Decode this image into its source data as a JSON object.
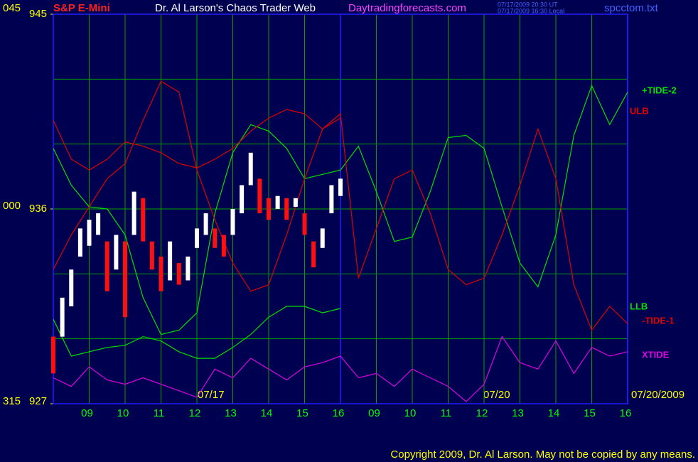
{
  "chart_data": {
    "type": "line",
    "symbol": "S&P E-Mini",
    "title": "Dr. Al Larson's Chaos Trader Web",
    "site": "Daytradingforecasts.com",
    "timestamps": [
      "07/17/2009 20:30 UT",
      "07/17/2009 16:30 Local"
    ],
    "file": "spcctom.txt",
    "copyright": "Copyright 2009, Dr. Al Larson. May not be copied by any means.",
    "left_labels": [
      "045",
      "000",
      "315"
    ],
    "dates": [
      "07/17",
      "07/20",
      "07/20/2009"
    ],
    "ylim": [
      927,
      945
    ],
    "yticks": [
      945,
      936,
      927
    ],
    "ygrid": [
      930,
      933,
      936,
      939,
      942
    ],
    "xlim": [
      0,
      16
    ],
    "session_break": 8,
    "xticks": [
      {
        "value": 1,
        "label": "09"
      },
      {
        "value": 2,
        "label": "10"
      },
      {
        "value": 3,
        "label": "11"
      },
      {
        "value": 4,
        "label": "12"
      },
      {
        "value": 5,
        "label": "13"
      },
      {
        "value": 6,
        "label": "14"
      },
      {
        "value": 7,
        "label": "15"
      },
      {
        "value": 8,
        "label": "16"
      },
      {
        "value": 9,
        "label": "09"
      },
      {
        "value": 10,
        "label": "10"
      },
      {
        "value": 11,
        "label": "11"
      },
      {
        "value": 12,
        "label": "12"
      },
      {
        "value": 13,
        "label": "13"
      },
      {
        "value": 14,
        "label": "14"
      },
      {
        "value": 15,
        "label": "15"
      },
      {
        "value": 16,
        "label": "16"
      }
    ],
    "x": [
      0,
      0.5,
      1,
      1.5,
      2,
      2.5,
      3,
      3.5,
      4,
      4.5,
      5,
      5.5,
      6,
      6.5,
      7,
      7.5,
      8,
      8.5,
      9,
      9.5,
      10,
      10.5,
      11,
      11.5,
      12,
      12.5,
      13,
      13.5,
      14,
      14.5,
      15,
      15.5,
      16
    ],
    "series": [
      {
        "name": "+TIDE-2",
        "color": "#00e000",
        "values": [
          938.8,
          937.1,
          936.1,
          936.0,
          934.8,
          931.9,
          930.2,
          930.4,
          931.2,
          935.8,
          938.6,
          939.9,
          939.6,
          938.8,
          937.4,
          937.6,
          937.8,
          938.9,
          936.8,
          934.5,
          934.7,
          936.8,
          939.3,
          939.4,
          938.8,
          936.1,
          933.5,
          932.4,
          934.8,
          939.4,
          941.7,
          939.9,
          941.4
        ]
      },
      {
        "name": "ULB",
        "color": "#e00000",
        "values": [
          940.1,
          938.3,
          937.8,
          938.3,
          939.1,
          938.9,
          938.6,
          938.1,
          937.9,
          938.3,
          938.8,
          939.6,
          940.2,
          940.6,
          940.4,
          939.7,
          940.2,
          null,
          null,
          null,
          null,
          null,
          null,
          null,
          null,
          null,
          null,
          null,
          null,
          null,
          null,
          null,
          null
        ]
      },
      {
        "name": "LLB",
        "color": "#00e000",
        "values": [
          930.9,
          929.2,
          929.4,
          929.6,
          929.7,
          930.1,
          929.9,
          929.4,
          929.1,
          929.1,
          929.6,
          930.2,
          931.0,
          931.5,
          931.5,
          931.2,
          931.4,
          null,
          null,
          null,
          null,
          null,
          null,
          null,
          null,
          null,
          null,
          null,
          null,
          null,
          null,
          null,
          null
        ]
      },
      {
        "name": "-TIDE-1",
        "color": "#e00000",
        "values": [
          933.2,
          934.8,
          936.1,
          937.4,
          938.1,
          940.1,
          941.9,
          941.4,
          937.8,
          935.5,
          933.5,
          932.2,
          932.5,
          934.8,
          937.4,
          939.7,
          940.4,
          932.8,
          935.1,
          937.4,
          937.8,
          935.8,
          933.2,
          932.5,
          932.8,
          934.8,
          937.1,
          939.7,
          937.4,
          932.5,
          930.4,
          931.5,
          930.7
        ]
      },
      {
        "name": "XTIDE",
        "color": "#e000e0",
        "values": [
          928.2,
          927.8,
          928.7,
          928.1,
          927.9,
          928.2,
          927.9,
          927.6,
          927.3,
          928.6,
          928.2,
          929.1,
          928.6,
          928.1,
          928.7,
          928.9,
          929.2,
          928.2,
          928.4,
          927.8,
          928.6,
          928.2,
          927.8,
          927.1,
          927.9,
          930.1,
          928.9,
          928.6,
          929.9,
          928.4,
          929.6,
          929.2,
          929.4
        ]
      }
    ],
    "price": {
      "x": [
        0,
        0.25,
        0.5,
        0.75,
        1,
        1.25,
        1.5,
        1.75,
        2,
        2.25,
        2.5,
        2.75,
        3,
        3.25,
        3.5,
        3.75,
        4,
        4.25,
        4.5,
        4.75,
        5,
        5.25,
        5.5,
        5.75,
        6,
        6.25,
        6.5,
        6.75,
        7,
        7.25,
        7.5,
        7.75,
        8
      ],
      "low": [
        928.4,
        930.1,
        931.5,
        933.8,
        934.3,
        934.8,
        932.2,
        933.2,
        931.0,
        934.8,
        934.5,
        933.2,
        932.2,
        932.7,
        932.5,
        932.7,
        934.2,
        934.8,
        934.2,
        933.8,
        934.8,
        935.8,
        937.1,
        935.8,
        935.5,
        936.0,
        935.5,
        936.1,
        934.8,
        933.3,
        934.2,
        935.8,
        936.6
      ],
      "high": [
        930.1,
        931.9,
        933.2,
        935.1,
        935.5,
        935.8,
        934.5,
        934.8,
        934.5,
        936.8,
        936.5,
        934.5,
        933.8,
        934.5,
        933.5,
        933.8,
        935.1,
        935.8,
        935.1,
        934.8,
        936.0,
        937.1,
        938.6,
        937.4,
        936.5,
        936.6,
        936.5,
        936.5,
        935.8,
        934.5,
        935.1,
        937.1,
        937.4
      ]
    }
  }
}
